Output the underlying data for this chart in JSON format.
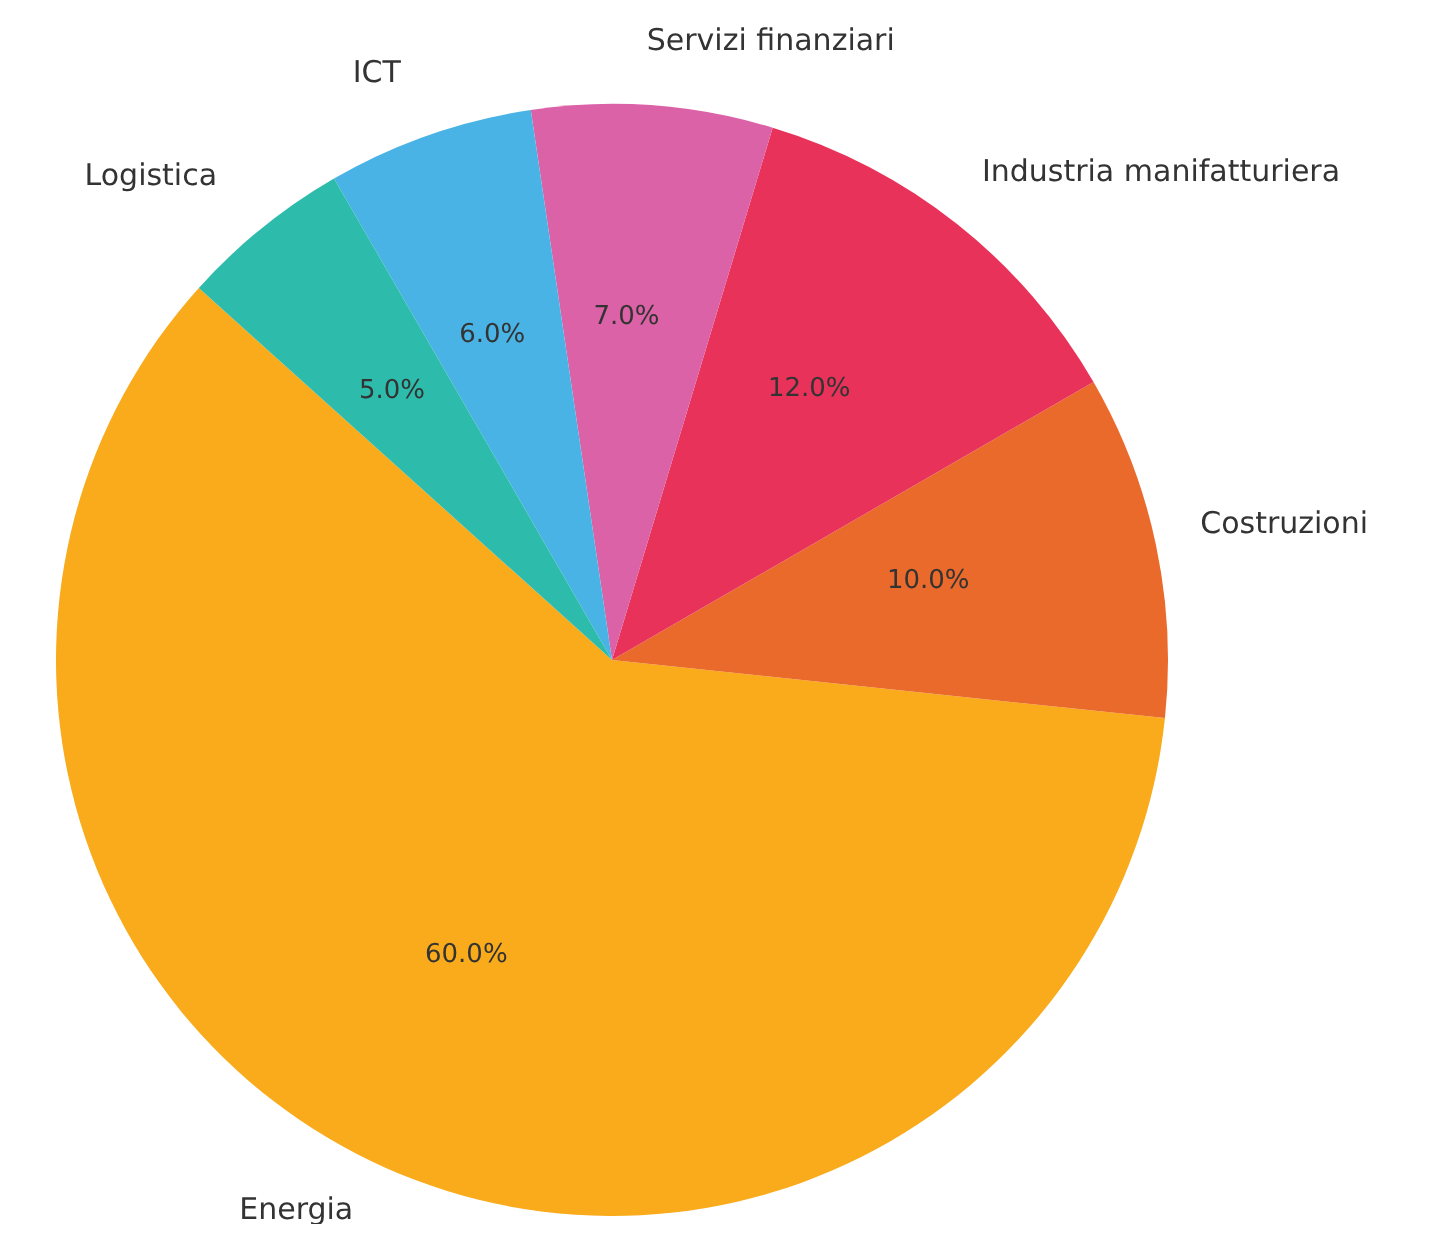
{
  "chart_data": {
    "type": "pie",
    "categories": [
      "Energia",
      "Costruzioni",
      "Industria manifatturiera",
      "Servizi finanziari",
      "ICT",
      "Logistica"
    ],
    "values": [
      60,
      10,
      12,
      7,
      6,
      5
    ],
    "value_labels": [
      "60.0%",
      "10.0%",
      "12.0%",
      "7.0%",
      "6.0%",
      "5.0%"
    ],
    "colors": [
      "#f9ab1c",
      "#ea6a2b",
      "#e8325a",
      "#dc62a7",
      "#4ab3e5",
      "#2dbcac"
    ],
    "legend": false
  }
}
